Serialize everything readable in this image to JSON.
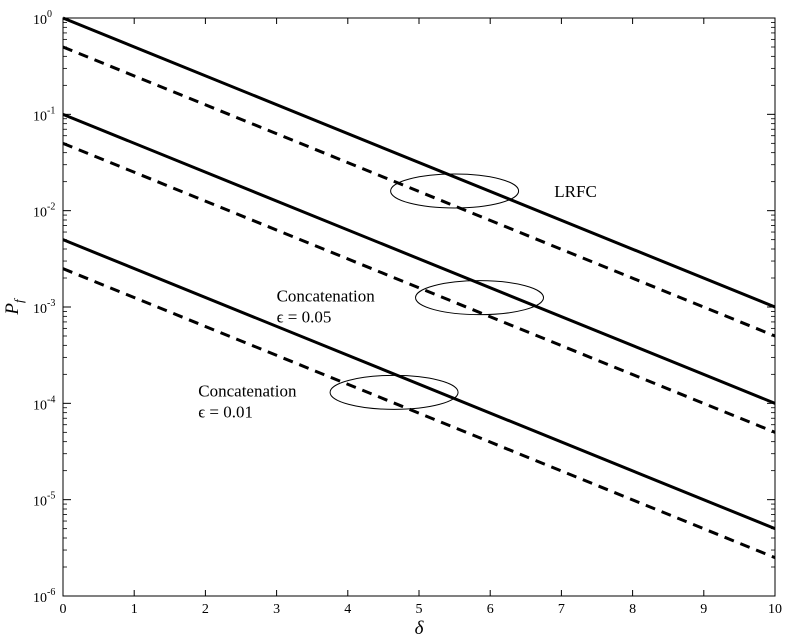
{
  "chart_data": {
    "type": "line",
    "title": "",
    "xlabel": "δ",
    "ylabel": "P",
    "ylabel_subscript": "f",
    "xlim": [
      0,
      10
    ],
    "ylim": [
      1e-06,
      1
    ],
    "yscale": "log",
    "grid": false,
    "x_ticks": [
      0,
      1,
      2,
      3,
      4,
      5,
      6,
      7,
      8,
      9,
      10
    ],
    "y_ticks": [
      {
        "value": 1,
        "base": "10",
        "exp": "0"
      },
      {
        "value": 0.1,
        "base": "10",
        "exp": "-1"
      },
      {
        "value": 0.01,
        "base": "10",
        "exp": "-2"
      },
      {
        "value": 0.001,
        "base": "10",
        "exp": "-3"
      },
      {
        "value": 0.0001,
        "base": "10",
        "exp": "-4"
      },
      {
        "value": 1e-05,
        "base": "10",
        "exp": "-5"
      },
      {
        "value": 1e-06,
        "base": "10",
        "exp": "-6"
      }
    ],
    "series": [
      {
        "style": "solid",
        "color": "#000000",
        "x": [
          0,
          10
        ],
        "y": [
          1.0,
          0.001
        ]
      },
      {
        "style": "dashed",
        "color": "#000000",
        "x": [
          0,
          10
        ],
        "y": [
          0.5,
          0.0005
        ]
      },
      {
        "style": "solid",
        "color": "#000000",
        "x": [
          0,
          10
        ],
        "y": [
          0.1,
          0.0001
        ]
      },
      {
        "style": "dashed",
        "color": "#000000",
        "x": [
          0,
          10
        ],
        "y": [
          0.05,
          5e-05
        ]
      },
      {
        "style": "solid",
        "color": "#000000",
        "x": [
          0,
          10
        ],
        "y": [
          0.005,
          5e-06
        ]
      },
      {
        "style": "dashed",
        "color": "#000000",
        "x": [
          0,
          10
        ],
        "y": [
          0.0025,
          2.5e-06
        ]
      }
    ],
    "annotations": [
      {
        "lines": [
          "LRFC"
        ],
        "ellipse_center": [
          5.5,
          0.016
        ],
        "label_at": [
          6.9,
          0.016
        ]
      },
      {
        "lines": [
          "Concatenation",
          "ϵ = 0.05"
        ],
        "ellipse_center": [
          5.85,
          0.00125
        ],
        "label_at": [
          3.0,
          0.00125
        ]
      },
      {
        "lines": [
          "Concatenation",
          "ϵ = 0.01"
        ],
        "ellipse_center": [
          4.65,
          0.00013
        ],
        "label_at": [
          1.9,
          0.00013
        ]
      }
    ]
  }
}
